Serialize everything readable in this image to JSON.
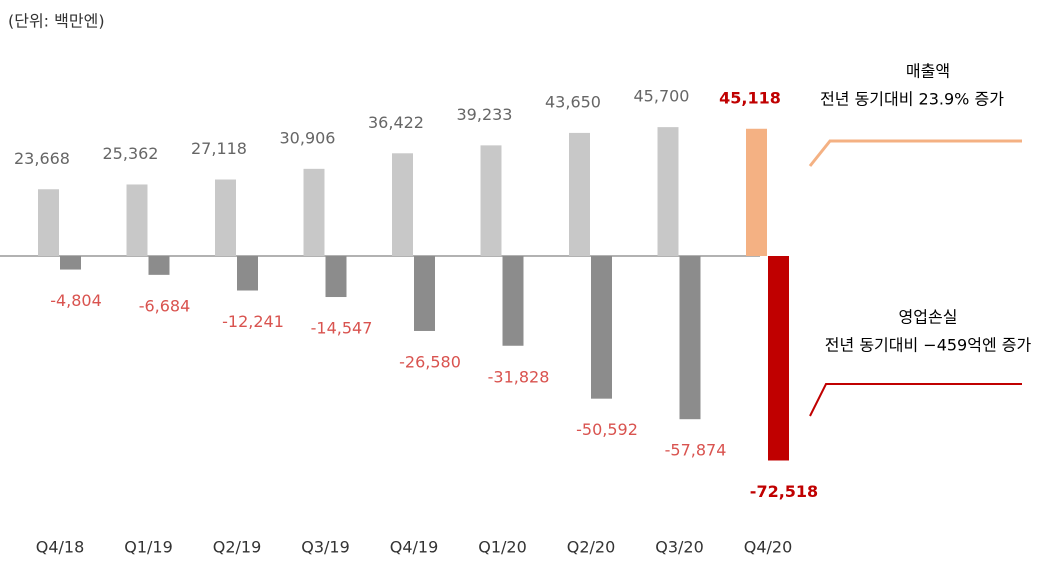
{
  "chart_data": {
    "type": "bar",
    "title": "(단위: 백만엔)",
    "categories": [
      "Q4/18",
      "Q1/19",
      "Q2/19",
      "Q3/19",
      "Q4/19",
      "Q1/20",
      "Q2/20",
      "Q3/20",
      "Q4/20"
    ],
    "ylim": [
      -80000,
      60000
    ],
    "series": [
      {
        "name": "매출액",
        "annotation": "전년 동기대비 23.9% 증가",
        "colors": [
          "#c8c8c8",
          "#c8c8c8",
          "#c8c8c8",
          "#c8c8c8",
          "#c8c8c8",
          "#c8c8c8",
          "#c8c8c8",
          "#c8c8c8",
          "#f4b183"
        ],
        "label_color": "#666666",
        "values": [
          23668,
          25362,
          27118,
          30906,
          36422,
          39233,
          43650,
          45700,
          45118
        ],
        "value_labels": [
          "23,668",
          "25,362",
          "27,118",
          "30,906",
          "36,422",
          "39,233",
          "43,650",
          "45,700",
          "45,118"
        ]
      },
      {
        "name": "영업손실",
        "annotation": "전년 동기대비 −459억엔 증가",
        "colors": [
          "#8c8c8c",
          "#8c8c8c",
          "#8c8c8c",
          "#8c8c8c",
          "#8c8c8c",
          "#8c8c8c",
          "#8c8c8c",
          "#8c8c8c",
          "#c00000"
        ],
        "label_color": "#d9534f",
        "values": [
          -4804,
          -6684,
          -12241,
          -14547,
          -26580,
          -31828,
          -50592,
          -57874,
          -72518
        ],
        "value_labels": [
          "-4,804",
          "-6,684",
          "-12,241",
          "-14,547",
          "-26,580",
          "-31,828",
          "-50,592",
          "-57,874",
          "-72,518"
        ]
      }
    ]
  }
}
